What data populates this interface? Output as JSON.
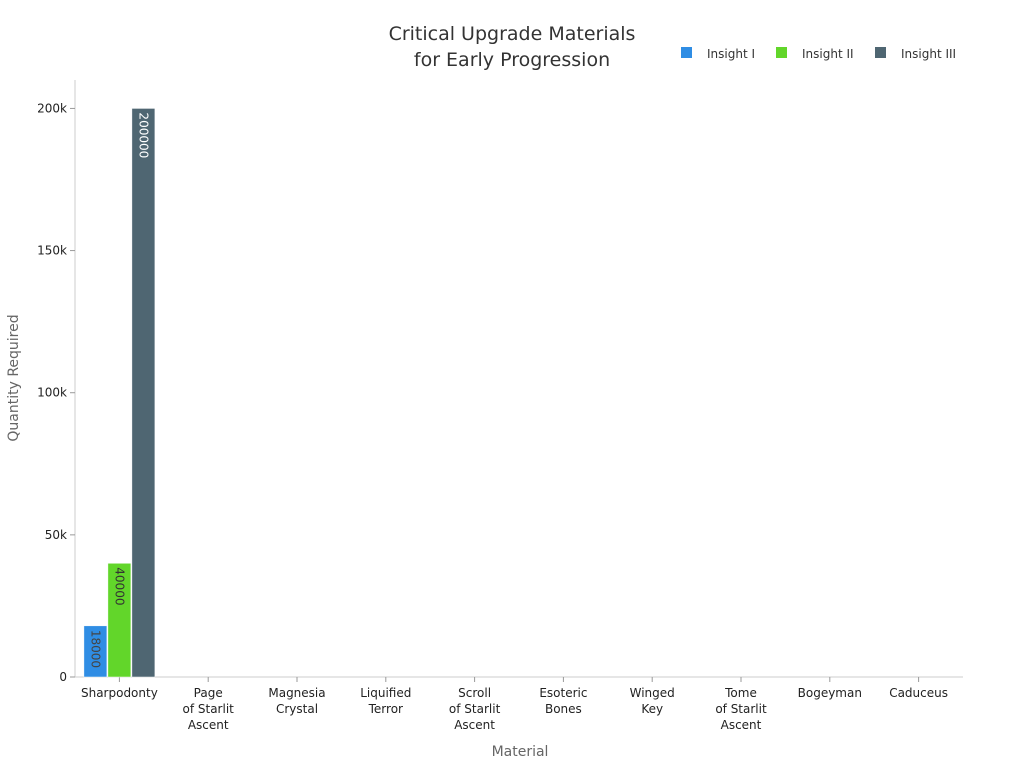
{
  "chart_data": {
    "type": "bar",
    "title_lines": [
      "Critical Upgrade Materials",
      "for Early Progression"
    ],
    "xlabel": "Material",
    "ylabel": "Quantity Required",
    "categories": [
      [
        "Sharpodonty"
      ],
      [
        "Page",
        "of Starlit",
        "Ascent"
      ],
      [
        "Magnesia",
        "Crystal"
      ],
      [
        "Liquified",
        "Terror"
      ],
      [
        "Scroll",
        "of Starlit",
        "Ascent"
      ],
      [
        "Esoteric",
        "Bones"
      ],
      [
        "Winged",
        "Key"
      ],
      [
        "Tome",
        "of Starlit",
        "Ascent"
      ],
      [
        "Bogeyman"
      ],
      [
        "Caduceus"
      ]
    ],
    "series": [
      {
        "name": "Insight I",
        "color": "#2f8de4",
        "label_color": "#444444",
        "values": [
          18000,
          0,
          0,
          0,
          0,
          0,
          0,
          0,
          0,
          0
        ]
      },
      {
        "name": "Insight II",
        "color": "#62d62a",
        "label_color": "#333333",
        "values": [
          40000,
          0,
          0,
          0,
          0,
          0,
          0,
          0,
          0,
          0
        ]
      },
      {
        "name": "Insight III",
        "color": "#4f6672",
        "label_color": "#ffffff",
        "values": [
          200000,
          0,
          0,
          0,
          0,
          0,
          0,
          0,
          0,
          0
        ]
      }
    ],
    "ylim": [
      0,
      210000
    ],
    "yticks": [
      0,
      50000,
      100000,
      150000,
      200000
    ],
    "ytick_labels": [
      "0",
      "50k",
      "100k",
      "150k",
      "200k"
    ],
    "legend_position": "top-right",
    "grid": false
  }
}
